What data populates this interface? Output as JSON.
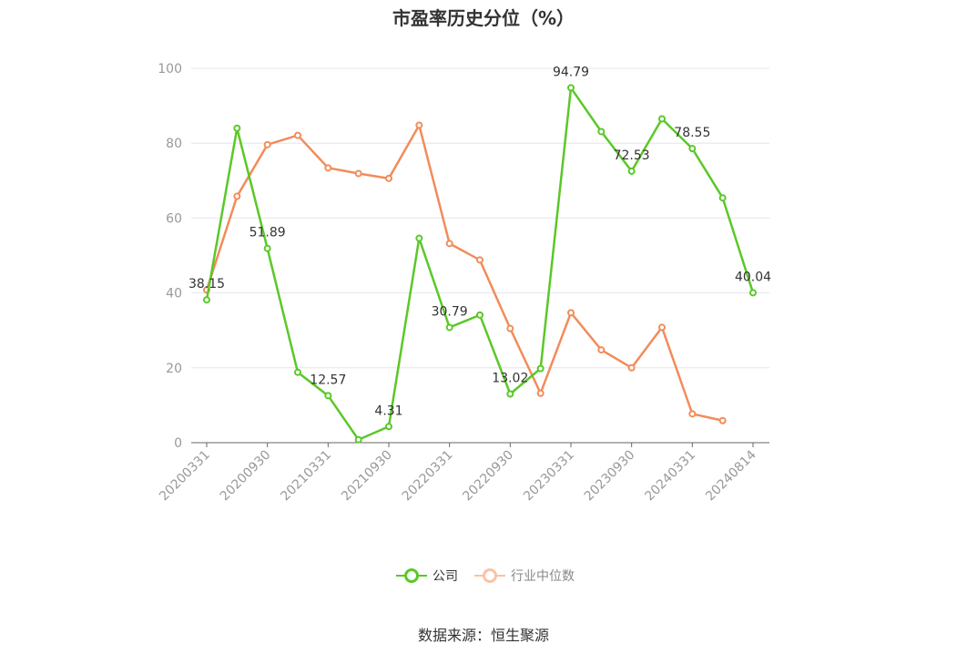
{
  "chart_data": {
    "type": "line",
    "title": "市盈率历史分位（%）",
    "x_ticks": [
      "20200331",
      "20200930",
      "20210331",
      "20210930",
      "20220331",
      "20220930",
      "20230331",
      "20230930",
      "20240331",
      "20240814"
    ],
    "ylim": [
      0,
      100
    ],
    "y_ticks": [
      0,
      20,
      40,
      60,
      80,
      100
    ],
    "grid": true,
    "legend_position": "bottom",
    "series": [
      {
        "name": "公司",
        "color": "#5ac828",
        "values": [
          38.15,
          84.0,
          51.89,
          18.8,
          12.57,
          0.8,
          4.31,
          54.6,
          30.79,
          34.1,
          13.02,
          19.8,
          94.79,
          83.1,
          72.53,
          86.5,
          78.55,
          65.4,
          40.04
        ],
        "labels": [
          "38.15",
          "",
          "51.89",
          "",
          "12.57",
          "",
          "4.31",
          "",
          "30.79",
          "",
          "13.02",
          "",
          "94.79",
          "",
          "72.53",
          "",
          "78.55",
          "",
          "40.04"
        ]
      },
      {
        "name": "行业中位数",
        "color": "#f28c5a",
        "values": [
          40.8,
          65.8,
          79.6,
          82.1,
          73.4,
          71.9,
          70.6,
          84.8,
          53.2,
          48.8,
          30.5,
          13.2,
          34.7,
          24.8,
          20.0,
          30.8,
          7.7,
          5.9,
          null
        ]
      }
    ]
  },
  "legend": {
    "company_label": "公司",
    "industry_label": "行业中位数"
  },
  "source": "数据来源：恒生聚源"
}
